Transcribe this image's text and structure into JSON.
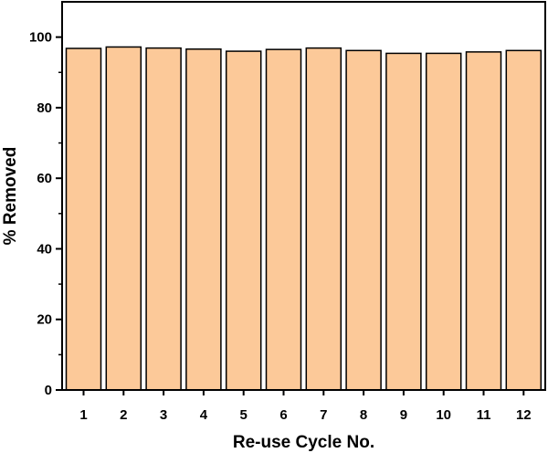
{
  "chart_data": {
    "type": "bar",
    "title": "",
    "xlabel": "Re-use Cycle No.",
    "ylabel": "% Removed",
    "categories": [
      "1",
      "2",
      "3",
      "4",
      "5",
      "6",
      "7",
      "8",
      "9",
      "10",
      "11",
      "12"
    ],
    "values": [
      96.8,
      97.2,
      96.9,
      96.6,
      96.0,
      96.5,
      96.9,
      96.2,
      95.4,
      95.4,
      95.8,
      96.2
    ],
    "ylim": [
      0,
      110
    ],
    "yticks": [
      0,
      20,
      40,
      60,
      80,
      100
    ],
    "grid": false,
    "legend": "none",
    "bar_color": "#FCC999",
    "bar_edge_color": "#000000"
  }
}
